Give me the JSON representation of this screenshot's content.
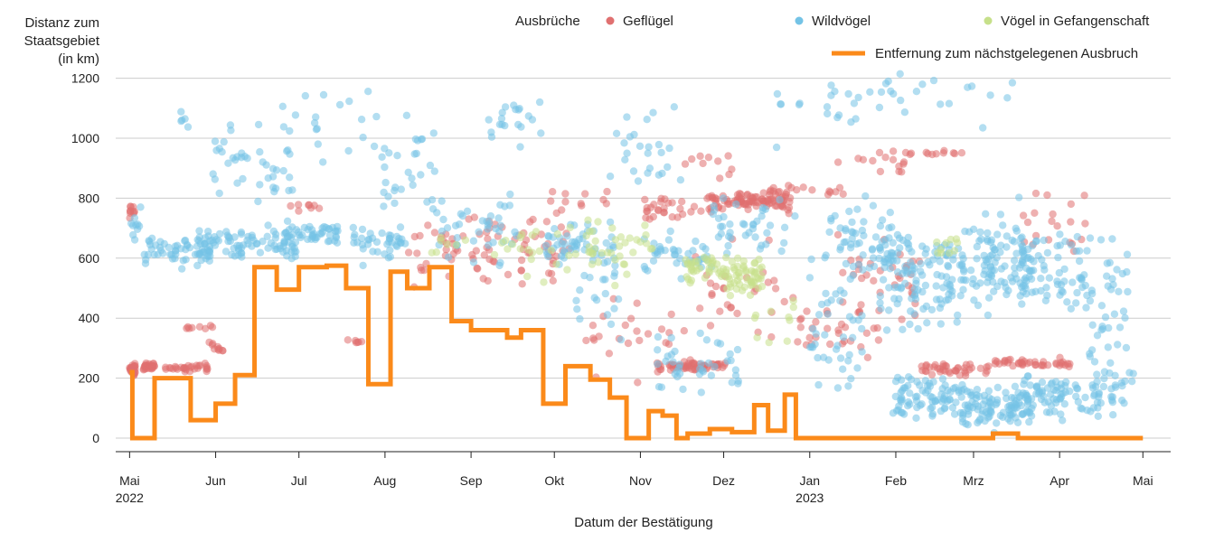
{
  "chart_data": {
    "type": "scatter",
    "ylabel_lines": [
      "Distanz zum",
      "Staatsgebiet",
      "(in km)"
    ],
    "xlabel": "Datum der Bestätigung",
    "legend_title": "Ausbrüche",
    "ylim": [
      0,
      1250
    ],
    "yticks": [
      0,
      200,
      400,
      600,
      800,
      1000,
      1200
    ],
    "xrange_days": [
      -5,
      375
    ],
    "xticks": [
      {
        "day": 0,
        "label": "Mai",
        "year": "2022"
      },
      {
        "day": 31,
        "label": "Jun",
        "year": ""
      },
      {
        "day": 61,
        "label": "Jul",
        "year": ""
      },
      {
        "day": 92,
        "label": "Aug",
        "year": ""
      },
      {
        "day": 123,
        "label": "Sep",
        "year": ""
      },
      {
        "day": 153,
        "label": "Okt",
        "year": ""
      },
      {
        "day": 184,
        "label": "Nov",
        "year": ""
      },
      {
        "day": 214,
        "label": "Dez",
        "year": ""
      },
      {
        "day": 245,
        "label": "Jan",
        "year": "2023"
      },
      {
        "day": 276,
        "label": "Feb",
        "year": ""
      },
      {
        "day": 304,
        "label": "Mrz",
        "year": ""
      },
      {
        "day": 335,
        "label": "Apr",
        "year": ""
      },
      {
        "day": 365,
        "label": "Mai",
        "year": ""
      }
    ],
    "series": [
      {
        "name": "Geflügel",
        "kind": "points",
        "color": "#e07070",
        "clusters": [
          [
            0,
            2,
            230,
            30,
            35,
            3
          ],
          [
            0,
            2,
            760,
            30,
            10,
            4
          ],
          [
            5,
            9,
            240,
            20,
            28,
            5
          ],
          [
            12,
            30,
            235,
            20,
            30,
            6
          ],
          [
            18,
            30,
            370,
            10,
            8,
            7
          ],
          [
            28,
            34,
            300,
            40,
            10,
            8
          ],
          [
            58,
            70,
            770,
            25,
            8,
            9
          ],
          [
            78,
            84,
            320,
            10,
            6,
            10
          ],
          [
            100,
            120,
            600,
            150,
            25,
            11
          ],
          [
            120,
            160,
            630,
            180,
            60,
            12
          ],
          [
            150,
            175,
            800,
            60,
            10,
            13
          ],
          [
            160,
            200,
            330,
            200,
            25,
            14
          ],
          [
            185,
            210,
            760,
            60,
            30,
            15
          ],
          [
            190,
            215,
            240,
            25,
            60,
            16
          ],
          [
            200,
            220,
            920,
            60,
            10,
            17
          ],
          [
            208,
            238,
            790,
            45,
            90,
            18
          ],
          [
            200,
            240,
            500,
            240,
            30,
            19
          ],
          [
            230,
            260,
            820,
            40,
            20,
            20
          ],
          [
            240,
            270,
            350,
            100,
            30,
            21
          ],
          [
            255,
            280,
            920,
            60,
            12,
            22
          ],
          [
            255,
            285,
            550,
            230,
            35,
            23
          ],
          [
            270,
            300,
            950,
            10,
            14,
            24
          ],
          [
            285,
            310,
            230,
            30,
            40,
            25
          ],
          [
            310,
            340,
            250,
            20,
            40,
            26
          ],
          [
            320,
            345,
            720,
            150,
            20,
            27
          ]
        ]
      },
      {
        "name": "Wildvögel",
        "kind": "points",
        "color": "#74c3e6",
        "clusters": [
          [
            0,
            4,
            700,
            80,
            10,
            101
          ],
          [
            5,
            30,
            630,
            80,
            60,
            102
          ],
          [
            18,
            24,
            1050,
            80,
            5,
            103
          ],
          [
            25,
            60,
            650,
            80,
            80,
            104
          ],
          [
            30,
            60,
            900,
            200,
            40,
            105
          ],
          [
            55,
            75,
            680,
            60,
            50,
            106
          ],
          [
            55,
            90,
            1050,
            200,
            20,
            107
          ],
          [
            80,
            100,
            650,
            100,
            40,
            108
          ],
          [
            90,
            110,
            900,
            250,
            30,
            109
          ],
          [
            110,
            140,
            700,
            150,
            40,
            110
          ],
          [
            125,
            150,
            1050,
            120,
            20,
            111
          ],
          [
            150,
            175,
            630,
            110,
            50,
            112
          ],
          [
            160,
            185,
            480,
            200,
            20,
            113
          ],
          [
            170,
            200,
            950,
            200,
            25,
            114
          ],
          [
            185,
            210,
            620,
            100,
            40,
            115
          ],
          [
            190,
            220,
            250,
            180,
            40,
            116
          ],
          [
            210,
            240,
            700,
            150,
            40,
            117
          ],
          [
            230,
            260,
            1100,
            150,
            15,
            118
          ],
          [
            245,
            265,
            350,
            300,
            40,
            119
          ],
          [
            250,
            275,
            650,
            200,
            60,
            120
          ],
          [
            270,
            300,
            550,
            220,
            120,
            121
          ],
          [
            275,
            300,
            140,
            100,
            80,
            122
          ],
          [
            300,
            325,
            600,
            220,
            100,
            123
          ],
          [
            300,
            325,
            100,
            100,
            100,
            124
          ],
          [
            320,
            345,
            550,
            200,
            70,
            125
          ],
          [
            320,
            350,
            140,
            120,
            80,
            126
          ],
          [
            345,
            360,
            400,
            400,
            40,
            127
          ],
          [
            260,
            320,
            1150,
            150,
            25,
            128
          ],
          [
            350,
            362,
            180,
            200,
            20,
            129
          ]
        ]
      },
      {
        "name": "Vögel in Gefangenschaft",
        "kind": "points",
        "color": "#c6e08a",
        "clusters": [
          [
            105,
            140,
            640,
            120,
            12,
            201
          ],
          [
            140,
            175,
            620,
            150,
            30,
            202
          ],
          [
            165,
            190,
            640,
            130,
            25,
            203
          ],
          [
            200,
            215,
            560,
            70,
            40,
            204
          ],
          [
            215,
            228,
            540,
            100,
            50,
            205
          ],
          [
            225,
            240,
            400,
            120,
            10,
            206
          ],
          [
            290,
            300,
            640,
            80,
            10,
            207
          ]
        ]
      },
      {
        "name": "Entfernung zum nächstgelegenen Ausbruch",
        "kind": "step",
        "color": "#fb8a1a",
        "x": [
          0,
          1,
          9,
          22,
          31,
          38,
          45,
          53,
          61,
          71,
          78,
          86,
          94,
          100,
          108,
          116,
          123,
          136,
          141,
          149,
          157,
          166,
          173,
          179,
          187,
          192,
          197,
          201,
          209,
          217,
          225,
          230,
          233,
          236,
          240,
          250,
          290,
          304,
          311,
          320,
          339,
          363
        ],
        "y": [
          220,
          0,
          200,
          60,
          115,
          210,
          570,
          495,
          570,
          575,
          500,
          180,
          555,
          500,
          570,
          390,
          360,
          335,
          360,
          115,
          240,
          195,
          135,
          0,
          90,
          75,
          0,
          15,
          30,
          20,
          110,
          25,
          25,
          145,
          0,
          0,
          0,
          0,
          15,
          0,
          0,
          0
        ]
      }
    ]
  }
}
